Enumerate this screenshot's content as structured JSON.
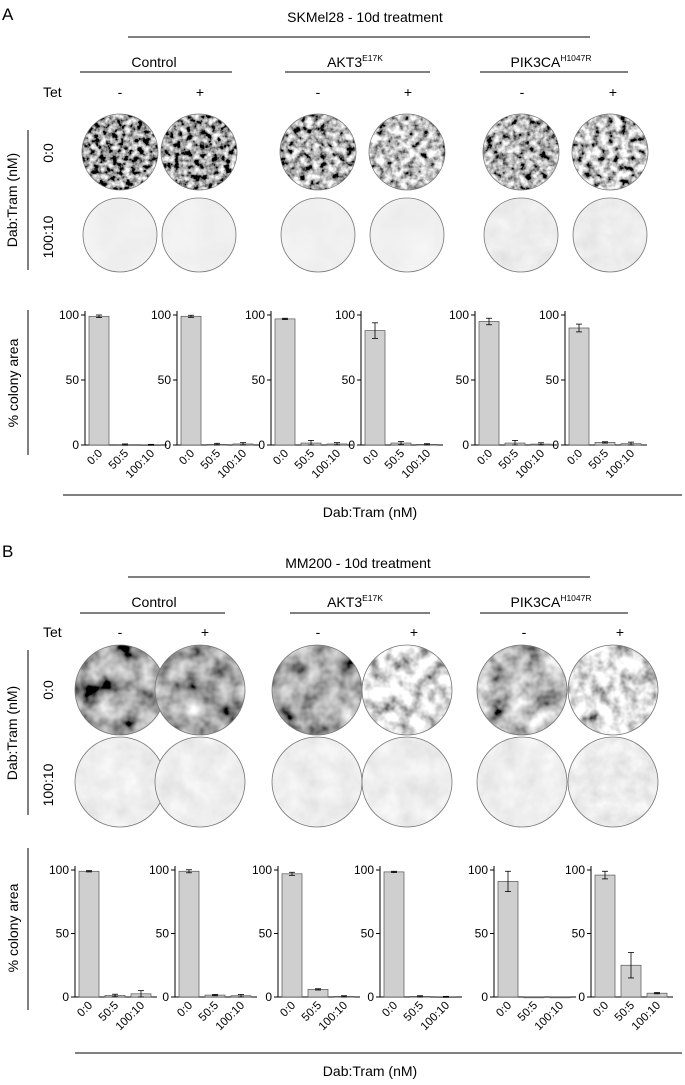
{
  "panels": [
    {
      "letter": "A",
      "title": "SKMel28 - 10d treatment",
      "groups": [
        {
          "name": "Control",
          "sup": ""
        },
        {
          "name": "AKT3",
          "sup": "E17K"
        },
        {
          "name": "PIK3CA",
          "sup": "H1047R"
        }
      ],
      "tet_label": "Tet",
      "tet_states": [
        "-",
        "+",
        "-",
        "+",
        "-",
        "+"
      ],
      "dish_axis_label": "Dab:Tram (nM)",
      "row_labels": [
        "0:0",
        "100:10"
      ],
      "ylabel": "% colony area",
      "xlabel": "Dab:Tram (nM)"
    },
    {
      "letter": "B",
      "title": "MM200 - 10d treatment",
      "groups": [
        {
          "name": "Control",
          "sup": ""
        },
        {
          "name": "AKT3",
          "sup": "E17K"
        },
        {
          "name": "PIK3CA",
          "sup": "H1047R"
        }
      ],
      "tet_label": "Tet",
      "tet_states": [
        "-",
        "+",
        "-",
        "+",
        "-",
        "+"
      ],
      "dish_axis_label": "Dab:Tram (nM)",
      "row_labels": [
        "0:0",
        "100:10"
      ],
      "ylabel": "% colony area",
      "xlabel": "Dab:Tram (nM)"
    }
  ],
  "chart_data": [
    {
      "type": "bar",
      "title": "SKMel28 - 10d treatment",
      "xlabel": "Dab:Tram (nM)",
      "ylabel": "% colony area",
      "categories": [
        "0:0",
        "50:5",
        "100:10"
      ],
      "yticks": [
        0,
        50,
        100
      ],
      "ylim": [
        0,
        100
      ],
      "series": [
        {
          "name": "Control Tet -",
          "values": [
            99,
            0.3,
            0.2
          ],
          "errors": [
            1,
            0.5,
            0.3
          ]
        },
        {
          "name": "Control Tet +",
          "values": [
            99,
            0.5,
            0.8
          ],
          "errors": [
            0.8,
            0.8,
            1.0
          ]
        },
        {
          "name": "AKT3 E17K Tet -",
          "values": [
            97,
            1.5,
            0.8
          ],
          "errors": [
            0.5,
            2.0,
            1.0
          ]
        },
        {
          "name": "AKT3 E17K Tet +",
          "values": [
            88,
            1.5,
            0.5
          ],
          "errors": [
            6,
            1.2,
            0.5
          ]
        },
        {
          "name": "PIK3CA H1047R Tet -",
          "values": [
            95,
            1.5,
            0.7
          ],
          "errors": [
            2.5,
            2.0,
            1.0
          ]
        },
        {
          "name": "PIK3CA H1047R Tet +",
          "values": [
            90,
            2.0,
            1.0
          ],
          "errors": [
            3,
            0.5,
            1.2
          ]
        }
      ]
    },
    {
      "type": "bar",
      "title": "MM200 - 10d treatment",
      "xlabel": "Dab:Tram (nM)",
      "ylabel": "% colony area",
      "categories": [
        "0:0",
        "50:5",
        "100:10"
      ],
      "yticks": [
        0,
        50,
        100
      ],
      "ylim": [
        0,
        100
      ],
      "series": [
        {
          "name": "Control Tet -",
          "values": [
            99,
            1.2,
            2.5
          ],
          "errors": [
            0.5,
            1.0,
            2.5
          ]
        },
        {
          "name": "Control Tet +",
          "values": [
            99,
            1.5,
            1.0
          ],
          "errors": [
            1.2,
            0.5,
            1.0
          ]
        },
        {
          "name": "AKT3 E17K Tet -",
          "values": [
            97,
            6,
            0.5
          ],
          "errors": [
            1.2,
            0.5,
            0.5
          ]
        },
        {
          "name": "AKT3 E17K Tet +",
          "values": [
            98.5,
            0.5,
            0.2
          ],
          "errors": [
            0.5,
            0.5,
            0.3
          ]
        },
        {
          "name": "PIK3CA H1047R Tet -",
          "values": [
            91,
            0,
            0
          ],
          "errors": [
            8,
            0,
            0
          ]
        },
        {
          "name": "PIK3CA H1047R Tet +",
          "values": [
            96,
            25,
            3
          ],
          "errors": [
            3,
            10,
            0.5
          ]
        }
      ]
    }
  ]
}
